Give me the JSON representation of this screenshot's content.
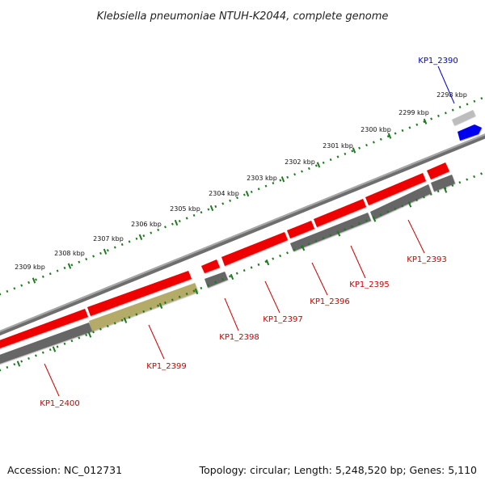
{
  "title": "Klebsiella pneumoniae NTUH-K2044, complete genome",
  "footer": {
    "accession": "Accession: NC_012731",
    "summary": "Topology: circular; Length: 5,248,520 bp; Genes: 5,110"
  },
  "colors": {
    "forward_feature": "#ee0000",
    "reverse_feature": "#666666",
    "highlight_feature": "#0000ee",
    "pseudo_feature": "#b5ab68",
    "light_feature": "#bbbbbb",
    "backbone": "#888888",
    "ticks": "#1f7a1f",
    "label_red": "#cc0000",
    "label_blue": "#0000cc"
  },
  "scale": {
    "ticks": [
      {
        "label": "2298 kbp"
      },
      {
        "label": "2299 kbp"
      },
      {
        "label": "2300 kbp"
      },
      {
        "label": "2301 kbp"
      },
      {
        "label": "2302 kbp"
      },
      {
        "label": "2303 kbp"
      },
      {
        "label": "2304 kbp"
      },
      {
        "label": "2305 kbp"
      },
      {
        "label": "2306 kbp"
      },
      {
        "label": "2307 kbp"
      },
      {
        "label": "2308 kbp"
      },
      {
        "label": "2309 kbp"
      }
    ]
  },
  "genes": [
    {
      "label": "KP1_2390",
      "color": "blue"
    },
    {
      "label": "KP1_2393",
      "color": "red"
    },
    {
      "label": "KP1_2395",
      "color": "red"
    },
    {
      "label": "KP1_2396",
      "color": "red"
    },
    {
      "label": "KP1_2397",
      "color": "red"
    },
    {
      "label": "KP1_2398",
      "color": "red"
    },
    {
      "label": "KP1_2399",
      "color": "red"
    },
    {
      "label": "KP1_2400",
      "color": "red"
    }
  ]
}
